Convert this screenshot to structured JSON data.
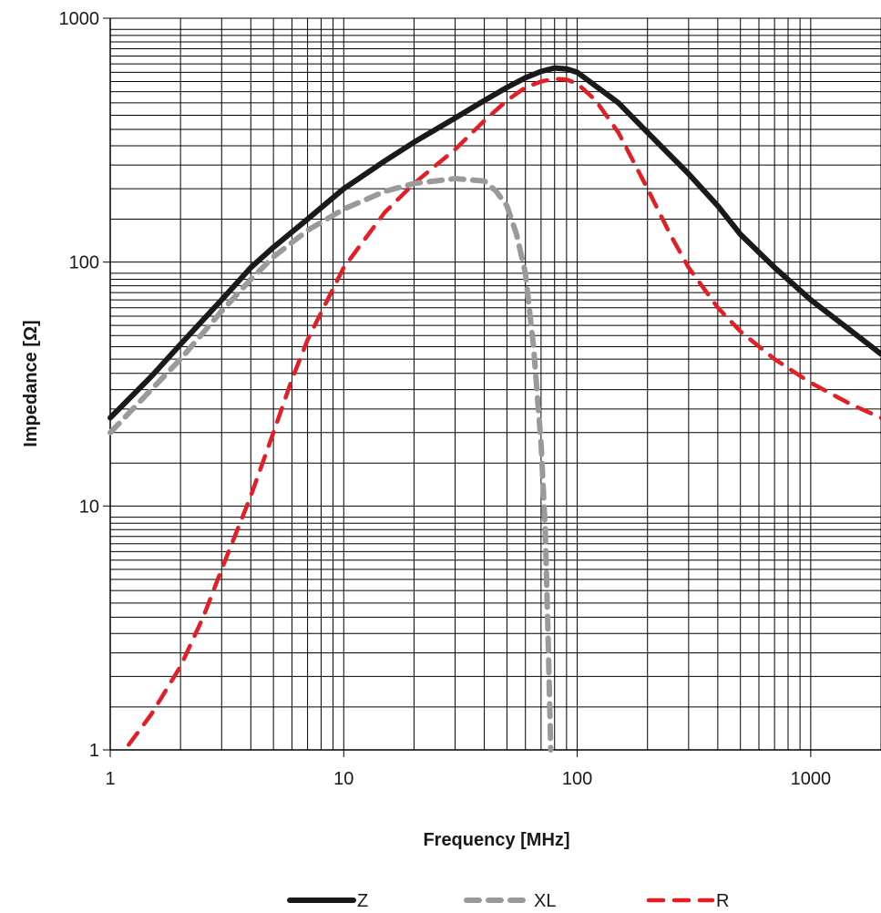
{
  "chart_data": {
    "type": "line",
    "xlabel": "Frequency [MHz]",
    "ylabel": "Impedance [Ω]",
    "x_scale": "log",
    "y_scale": "log",
    "xlim": [
      1,
      2000
    ],
    "ylim": [
      1,
      1000
    ],
    "x_ticks": [
      {
        "value": 1,
        "label": "1"
      },
      {
        "value": 10,
        "label": "10"
      },
      {
        "value": 100,
        "label": "100"
      },
      {
        "value": 1000,
        "label": "1000"
      }
    ],
    "y_ticks": [
      {
        "value": 1,
        "label": "1"
      },
      {
        "value": 10,
        "label": "10"
      },
      {
        "value": 100,
        "label": "100"
      },
      {
        "value": 1000,
        "label": "1000"
      }
    ],
    "grid": true,
    "legend_position": "bottom",
    "series": [
      {
        "name": "Z",
        "color": "#1a1a1a",
        "style": "solid",
        "points": [
          [
            1,
            23
          ],
          [
            1.5,
            34
          ],
          [
            2,
            46
          ],
          [
            3,
            70
          ],
          [
            4,
            95
          ],
          [
            5,
            115
          ],
          [
            7,
            150
          ],
          [
            10,
            200
          ],
          [
            15,
            260
          ],
          [
            20,
            310
          ],
          [
            30,
            390
          ],
          [
            40,
            460
          ],
          [
            50,
            520
          ],
          [
            60,
            570
          ],
          [
            70,
            605
          ],
          [
            80,
            625
          ],
          [
            90,
            620
          ],
          [
            100,
            600
          ],
          [
            150,
            450
          ],
          [
            200,
            340
          ],
          [
            300,
            230
          ],
          [
            400,
            170
          ],
          [
            500,
            130
          ],
          [
            700,
            95
          ],
          [
            1000,
            70
          ],
          [
            1500,
            52
          ],
          [
            2000,
            42
          ]
        ]
      },
      {
        "name": "XL",
        "color": "#9a9a9a",
        "style": "dash-dot",
        "points": [
          [
            1,
            20
          ],
          [
            1.5,
            30
          ],
          [
            2,
            40
          ],
          [
            3,
            63
          ],
          [
            4,
            85
          ],
          [
            5,
            105
          ],
          [
            7,
            135
          ],
          [
            10,
            165
          ],
          [
            15,
            195
          ],
          [
            20,
            210
          ],
          [
            30,
            220
          ],
          [
            40,
            215
          ],
          [
            45,
            195
          ],
          [
            50,
            170
          ],
          [
            55,
            130
          ],
          [
            60,
            90
          ],
          [
            65,
            45
          ],
          [
            70,
            18
          ],
          [
            73,
            8
          ],
          [
            75,
            3
          ],
          [
            77,
            1
          ]
        ]
      },
      {
        "name": "R",
        "color": "#e31e24",
        "style": "dashed",
        "points": [
          [
            1.2,
            1.05
          ],
          [
            1.5,
            1.4
          ],
          [
            2,
            2.2
          ],
          [
            2.5,
            3.5
          ],
          [
            3,
            5.5
          ],
          [
            4,
            11
          ],
          [
            5,
            20
          ],
          [
            6,
            33
          ],
          [
            7,
            48
          ],
          [
            8,
            62
          ],
          [
            10,
            95
          ],
          [
            15,
            160
          ],
          [
            20,
            210
          ],
          [
            30,
            290
          ],
          [
            40,
            380
          ],
          [
            50,
            460
          ],
          [
            60,
            520
          ],
          [
            70,
            550
          ],
          [
            80,
            565
          ],
          [
            90,
            560
          ],
          [
            100,
            540
          ],
          [
            120,
            460
          ],
          [
            150,
            340
          ],
          [
            200,
            200
          ],
          [
            250,
            130
          ],
          [
            300,
            95
          ],
          [
            400,
            65
          ],
          [
            500,
            52
          ],
          [
            700,
            40
          ],
          [
            1000,
            32
          ],
          [
            1500,
            26
          ],
          [
            2000,
            23
          ]
        ]
      }
    ]
  }
}
